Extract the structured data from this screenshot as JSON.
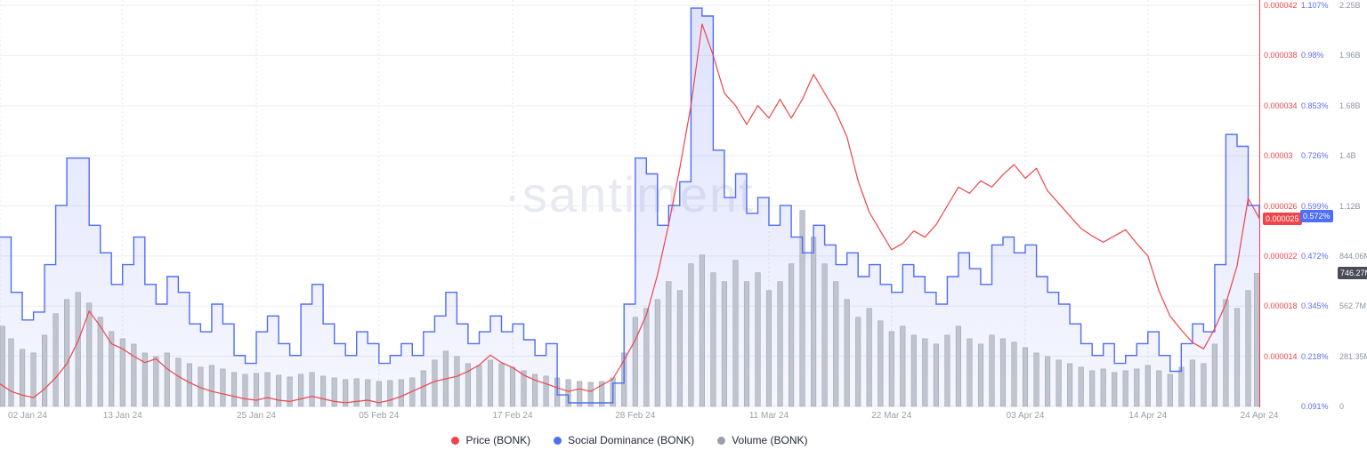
{
  "watermark": "·santiment",
  "legend": [
    {
      "label": "Price (BONK)",
      "color": "#ef454a"
    },
    {
      "label": "Social Dominance (BONK)",
      "color": "#4f6df5"
    },
    {
      "label": "Volume (BONK)",
      "color": "#9aa0ab"
    }
  ],
  "axes": {
    "x": {
      "labels": [
        "02 Jan 24",
        "13 Jan 24",
        "25 Jan 24",
        "05 Feb 24",
        "17 Feb 24",
        "28 Feb 24",
        "11 Mar 24",
        "22 Mar 24",
        "03 Apr 24",
        "14 Apr 24",
        "24 Apr 24"
      ],
      "day_index": [
        0,
        11,
        23,
        34,
        46,
        57,
        69,
        80,
        92,
        103,
        113
      ]
    },
    "price": {
      "labels": [
        "0.000042",
        "0.000038",
        "0.000034",
        "0.00003",
        "0.000026",
        "0.000022",
        "0.000018",
        "0.000014"
      ],
      "min": 1e-05,
      "max": 4.2e-05,
      "color": "#ef454a",
      "last_value_label": "0.000025"
    },
    "social": {
      "labels": [
        "1.107%",
        "0.98%",
        "0.853%",
        "0.726%",
        "0.599%",
        "0.472%",
        "0.345%",
        "0.218%",
        "0.091%"
      ],
      "min": 0.091,
      "max": 1.107,
      "color": "#4f6df5",
      "last_value_label": "0.572%"
    },
    "volume": {
      "labels": [
        "2.25B",
        "1.96B",
        "1.68B",
        "1.4B",
        "1.12B",
        "844.06M",
        "562.7M",
        "281.35M",
        "0"
      ],
      "min": 0,
      "max": 2250.8,
      "unit": "M",
      "color": "#8b93a3",
      "last_value_label": "746.27M"
    }
  },
  "chart_data": {
    "type": "combo",
    "x_start": "02 Jan 24",
    "x_end": "24 Apr 24",
    "interval": "1d",
    "points": 114,
    "grid": true,
    "legend_position": "bottom",
    "series": [
      {
        "name": "Price (BONK)",
        "type": "line",
        "axis": "price",
        "color": "#ef454a",
        "last_value": 2.5e-05,
        "values": [
          1.18e-05,
          1.12e-05,
          1.09e-05,
          1.07e-05,
          1.14e-05,
          1.23e-05,
          1.34e-05,
          1.52e-05,
          1.76e-05,
          1.64e-05,
          1.5e-05,
          1.46e-05,
          1.4e-05,
          1.35e-05,
          1.38e-05,
          1.3e-05,
          1.24e-05,
          1.19e-05,
          1.15e-05,
          1.12e-05,
          1.1e-05,
          1.08e-05,
          1.06e-05,
          1.05e-05,
          1.07e-05,
          1.05e-05,
          1.04e-05,
          1.06e-05,
          1.08e-05,
          1.06e-05,
          1.04e-05,
          1.03e-05,
          1.04e-05,
          1.05e-05,
          1.03e-05,
          1.05e-05,
          1.08e-05,
          1.12e-05,
          1.16e-05,
          1.2e-05,
          1.22e-05,
          1.24e-05,
          1.28e-05,
          1.33e-05,
          1.41e-05,
          1.35e-05,
          1.31e-05,
          1.25e-05,
          1.21e-05,
          1.18e-05,
          1.15e-05,
          1.12e-05,
          1.14e-05,
          1.12e-05,
          1.17e-05,
          1.22e-05,
          1.37e-05,
          1.53e-05,
          1.73e-05,
          2.05e-05,
          2.45e-05,
          2.9e-05,
          3.4e-05,
          4.05e-05,
          3.8e-05,
          3.5e-05,
          3.4e-05,
          3.25e-05,
          3.4e-05,
          3.3e-05,
          3.45e-05,
          3.3e-05,
          3.45e-05,
          3.65e-05,
          3.5e-05,
          3.35e-05,
          3.15e-05,
          2.8e-05,
          2.55e-05,
          2.4e-05,
          2.25e-05,
          2.3e-05,
          2.4e-05,
          2.35e-05,
          2.45e-05,
          2.6e-05,
          2.75e-05,
          2.7e-05,
          2.8e-05,
          2.75e-05,
          2.85e-05,
          2.93e-05,
          2.82e-05,
          2.9e-05,
          2.72e-05,
          2.62e-05,
          2.52e-05,
          2.42e-05,
          2.36e-05,
          2.31e-05,
          2.36e-05,
          2.41e-05,
          2.3e-05,
          2.2e-05,
          1.92e-05,
          1.72e-05,
          1.61e-05,
          1.51e-05,
          1.46e-05,
          1.62e-05,
          1.82e-05,
          2.12e-05,
          2.66e-05,
          2.5e-05
        ]
      },
      {
        "name": "Social Dominance (BONK)",
        "type": "step-area",
        "axis": "social",
        "color": "#4f6df5",
        "fill": "rgba(93,113,245,0.12)",
        "last_value": 0.572,
        "values": [
          0.52,
          0.38,
          0.31,
          0.33,
          0.45,
          0.6,
          0.72,
          0.72,
          0.55,
          0.48,
          0.4,
          0.45,
          0.52,
          0.4,
          0.35,
          0.42,
          0.38,
          0.3,
          0.28,
          0.35,
          0.3,
          0.22,
          0.2,
          0.28,
          0.32,
          0.25,
          0.22,
          0.35,
          0.4,
          0.3,
          0.25,
          0.22,
          0.28,
          0.25,
          0.2,
          0.22,
          0.25,
          0.22,
          0.28,
          0.32,
          0.38,
          0.3,
          0.25,
          0.28,
          0.32,
          0.28,
          0.3,
          0.26,
          0.22,
          0.25,
          0.12,
          0.1,
          0.1,
          0.1,
          0.1,
          0.15,
          0.35,
          0.72,
          0.68,
          0.55,
          0.6,
          0.66,
          1.1,
          1.08,
          0.74,
          0.62,
          0.68,
          0.58,
          0.62,
          0.55,
          0.6,
          0.52,
          0.48,
          0.55,
          0.5,
          0.45,
          0.48,
          0.42,
          0.45,
          0.4,
          0.38,
          0.45,
          0.42,
          0.38,
          0.35,
          0.42,
          0.48,
          0.44,
          0.4,
          0.5,
          0.52,
          0.48,
          0.5,
          0.42,
          0.38,
          0.35,
          0.3,
          0.25,
          0.22,
          0.25,
          0.2,
          0.22,
          0.25,
          0.28,
          0.22,
          0.18,
          0.25,
          0.3,
          0.28,
          0.45,
          0.78,
          0.75,
          0.6,
          0.572
        ]
      },
      {
        "name": "Volume (BONK)",
        "type": "bar",
        "axis": "volume",
        "unit": "M",
        "color": "#bfc4cf",
        "last_value": 746.27,
        "values": [
          450,
          380,
          320,
          300,
          400,
          520,
          600,
          640,
          580,
          500,
          420,
          380,
          350,
          300,
          280,
          300,
          270,
          240,
          220,
          230,
          210,
          190,
          180,
          185,
          190,
          175,
          165,
          180,
          190,
          170,
          160,
          150,
          155,
          150,
          140,
          145,
          150,
          160,
          200,
          260,
          310,
          280,
          240,
          230,
          260,
          240,
          220,
          200,
          180,
          170,
          160,
          150,
          140,
          135,
          140,
          160,
          300,
          500,
          550,
          600,
          700,
          650,
          800,
          850,
          750,
          700,
          820,
          700,
          750,
          650,
          700,
          800,
          1100,
          950,
          800,
          700,
          600,
          500,
          550,
          480,
          420,
          450,
          400,
          380,
          350,
          400,
          450,
          380,
          350,
          400,
          380,
          360,
          330,
          300,
          280,
          260,
          240,
          220,
          200,
          210,
          190,
          200,
          210,
          230,
          200,
          180,
          220,
          260,
          240,
          350,
          600,
          550,
          650,
          746.27
        ]
      }
    ]
  }
}
